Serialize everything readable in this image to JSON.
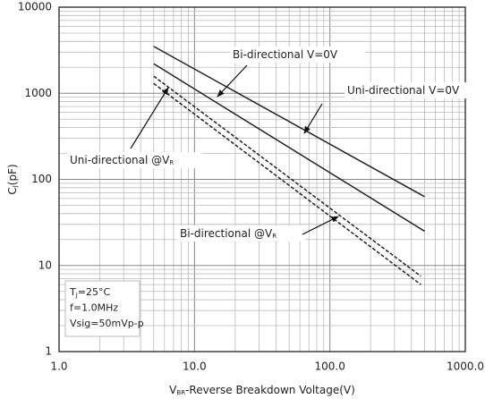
{
  "chart_data": {
    "type": "line",
    "log_x": true,
    "log_y": true,
    "grid": true,
    "x_label": [
      "V",
      "BR",
      "-Reverse Breakdown Voltage(V)"
    ],
    "y_label": [
      "C",
      "J",
      "(pF)"
    ],
    "xlim": [
      1,
      1000
    ],
    "xticks": [
      {
        "value": 1,
        "label": "1.0"
      },
      {
        "value": 10,
        "label": "10.0"
      },
      {
        "value": 100,
        "label": "100.0"
      },
      {
        "value": 1000,
        "label": "1000.0"
      }
    ],
    "ylim": [
      1,
      10000
    ],
    "yticks": [
      1,
      10,
      100,
      1000,
      10000
    ],
    "series": [
      {
        "name": "Bi-directional V=0V",
        "color": "#222222",
        "dash": false,
        "x": [
          5,
          500
        ],
        "values": [
          3500,
          63
        ]
      },
      {
        "name": "Uni-directional V=0V",
        "color": "#222222",
        "dash": false,
        "x": [
          5,
          500
        ],
        "values": [
          2200,
          25
        ]
      },
      {
        "name": "Bi-directional @VR",
        "color": "#222222",
        "dash": true,
        "x": [
          5,
          470
        ],
        "values": [
          1580,
          7.5
        ]
      },
      {
        "name": "Uni-directional @VR",
        "color": "#222222",
        "dash": true,
        "x": [
          5,
          470
        ],
        "values": [
          1300,
          6
        ]
      }
    ],
    "annotations": [
      [
        "Bi-directional V=0V"
      ],
      [
        "Uni-directional V=0V"
      ],
      [
        "Uni-directional @V",
        "R"
      ],
      [
        "Bi-directional @V",
        "R"
      ]
    ],
    "conditions": [
      [
        "T",
        "J",
        "=25°C"
      ],
      [
        "f=1.0MHz"
      ],
      [
        "Vsig=50mVp-p"
      ]
    ]
  }
}
